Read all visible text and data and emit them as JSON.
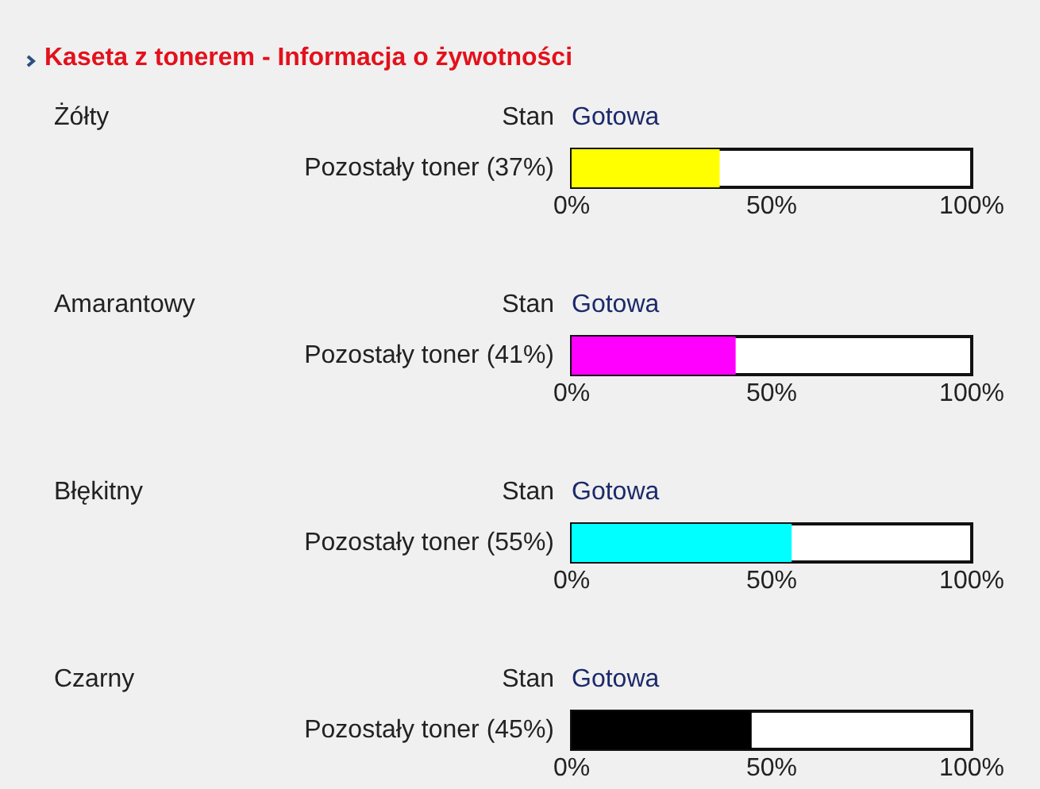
{
  "chart_data": [
    {
      "type": "other",
      "title": "Kaseta z tonerem - Informacja o żywotności"
    },
    {
      "type": "bar",
      "orientation": "horizontal",
      "annotations": [
        "Żółty",
        "Stan",
        "Gotowa"
      ],
      "categories": [
        "Pozostały toner (37%)"
      ],
      "values": [
        37
      ],
      "color": "#ffff00",
      "xlim": [
        0,
        100
      ],
      "xticks": [
        {
          "value": 0,
          "label": "0%"
        },
        {
          "value": 50,
          "label": "50%"
        },
        {
          "value": 100,
          "label": "100%"
        }
      ]
    },
    {
      "type": "bar",
      "orientation": "horizontal",
      "annotations": [
        "Amarantowy",
        "Stan",
        "Gotowa"
      ],
      "categories": [
        "Pozostały toner (41%)"
      ],
      "values": [
        41
      ],
      "color": "#ff00ff",
      "xlim": [
        0,
        100
      ],
      "xticks": [
        {
          "value": 0,
          "label": "0%"
        },
        {
          "value": 50,
          "label": "50%"
        },
        {
          "value": 100,
          "label": "100%"
        }
      ]
    },
    {
      "type": "bar",
      "orientation": "horizontal",
      "annotations": [
        "Błękitny",
        "Stan",
        "Gotowa"
      ],
      "categories": [
        "Pozostały toner (55%)"
      ],
      "values": [
        55
      ],
      "color": "#00ffff",
      "xlim": [
        0,
        100
      ],
      "xticks": [
        {
          "value": 0,
          "label": "0%"
        },
        {
          "value": 50,
          "label": "50%"
        },
        {
          "value": 100,
          "label": "100%"
        }
      ]
    },
    {
      "type": "bar",
      "orientation": "horizontal",
      "annotations": [
        "Czarny",
        "Stan",
        "Gotowa"
      ],
      "categories": [
        "Pozostały toner (45%)"
      ],
      "values": [
        45
      ],
      "color": "#000000",
      "xlim": [
        0,
        100
      ],
      "xticks": [
        {
          "value": 0,
          "label": "0%"
        },
        {
          "value": 50,
          "label": "50%"
        },
        {
          "value": 100,
          "label": "100%"
        }
      ]
    }
  ]
}
